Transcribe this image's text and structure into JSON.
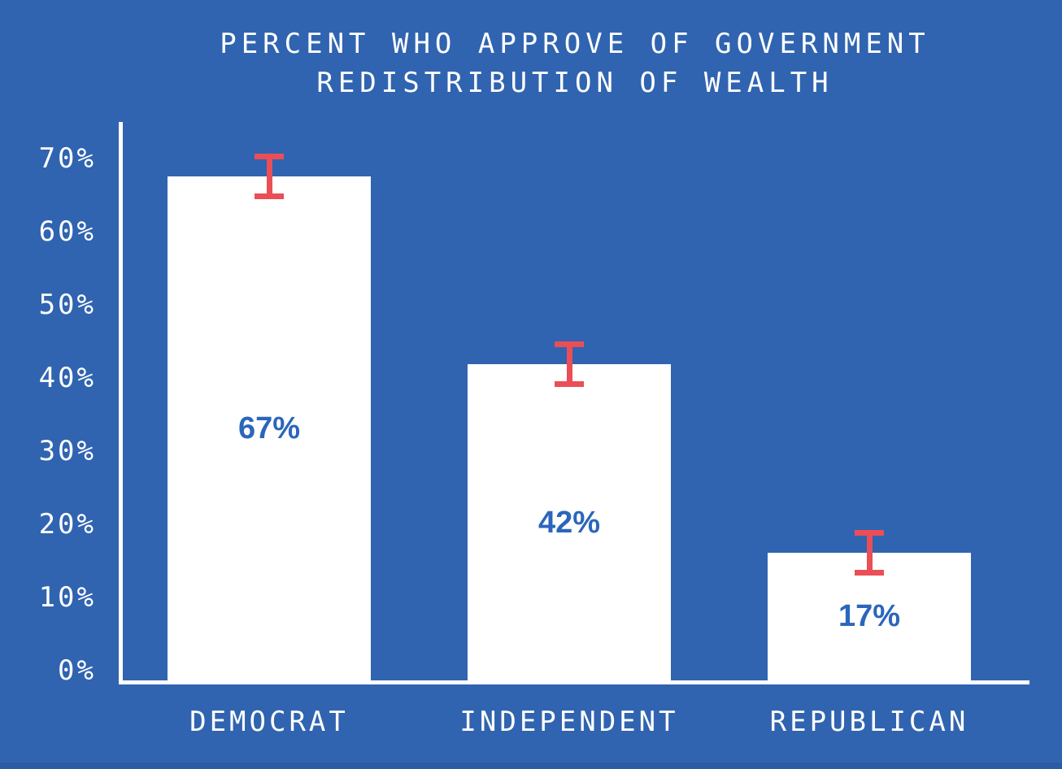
{
  "page": {
    "background_color": "#3064b0",
    "footer_stripe_color": "#2b5ba5"
  },
  "chart_data": {
    "type": "bar",
    "title": "PERCENT WHO APPROVE OF GOVERNMENT REDISTRIBUTION OF WEALTH",
    "categories": [
      "DEMOCRAT",
      "INDEPENDENT",
      "REPUBLICAN"
    ],
    "values": [
      67,
      42,
      17
    ],
    "value_labels": [
      "67%",
      "42%",
      "17%"
    ],
    "error_margins": [
      3,
      3,
      3
    ],
    "ylim": [
      0,
      70
    ],
    "ytick_labels": [
      "0%",
      "10%",
      "20%",
      "30%",
      "40%",
      "50%",
      "60%",
      "70%"
    ],
    "ytick_values": [
      0,
      10,
      20,
      30,
      40,
      50,
      60,
      70
    ],
    "grid": false,
    "legend": false,
    "bar_color": "#ffffff",
    "error_bar_color": "#ea4e56",
    "value_label_color": "#2b66bb",
    "axis_color": "#ffffff",
    "text_color": "#ffffff"
  }
}
